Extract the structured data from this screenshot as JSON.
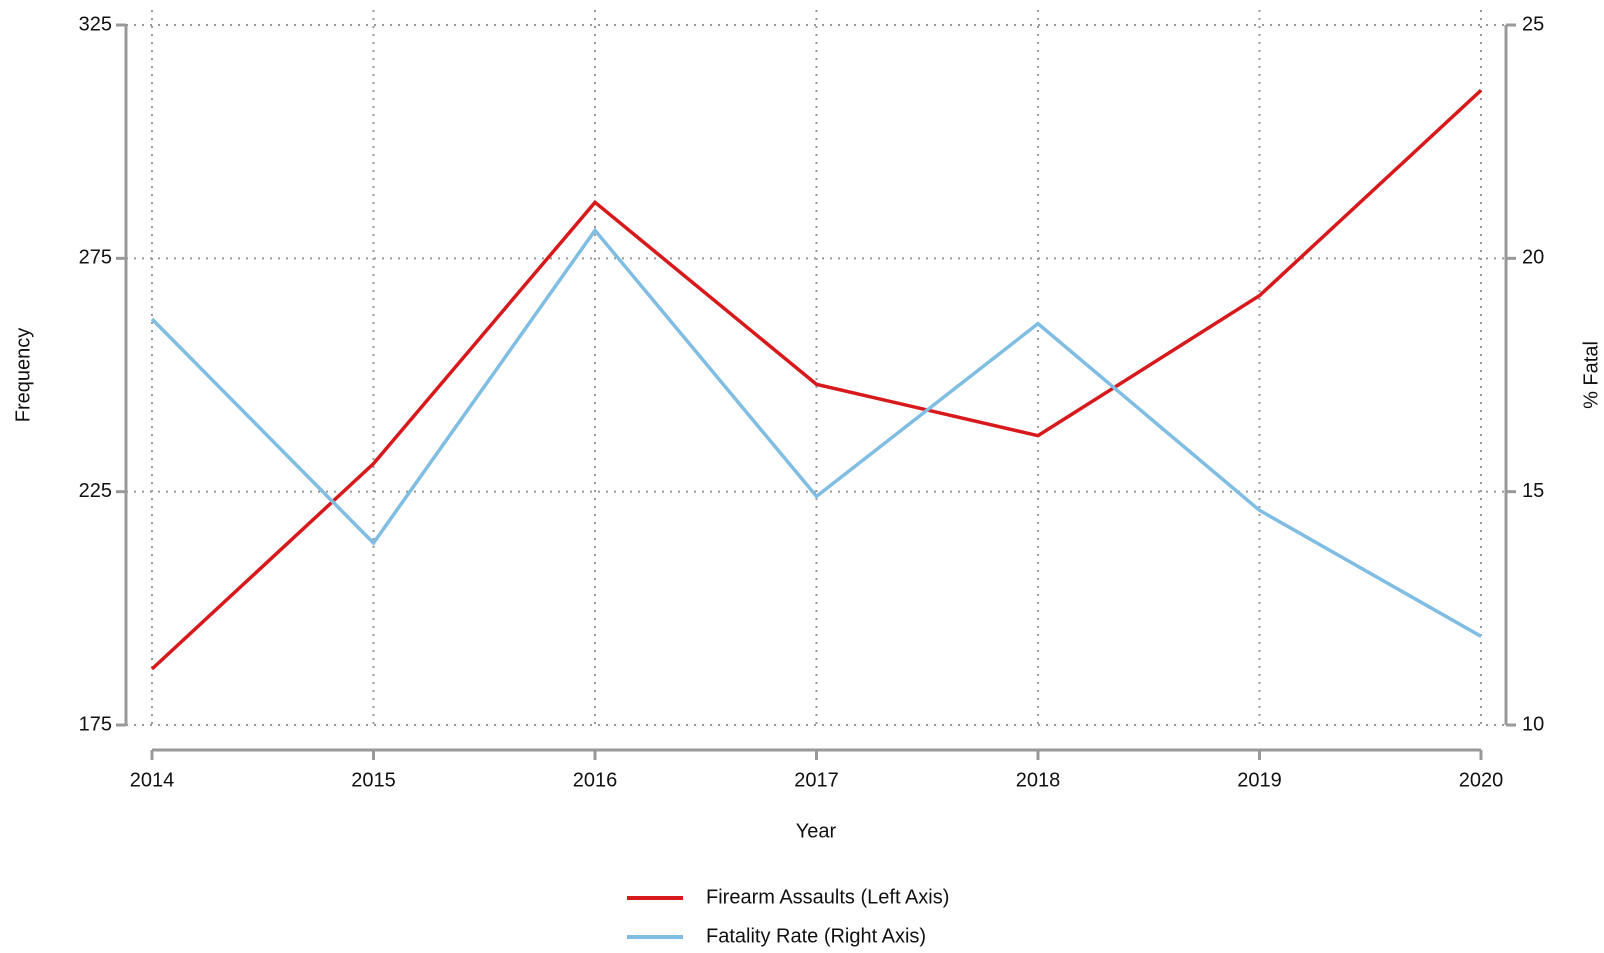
{
  "chart_data": {
    "type": "line",
    "x_label": "Year",
    "y_label": "Frequency",
    "y2_label": "% Fatal",
    "categories": [
      "2014",
      "2015",
      "2016",
      "2017",
      "2018",
      "2019",
      "2020"
    ],
    "series": [
      {
        "name": "Firearm Assaults (Left Axis)",
        "color": "#d7191c",
        "values": [
          187,
          231,
          287,
          248,
          237,
          267,
          311
        ]
      },
      {
        "name": "Fatality Rate (Right Axis)",
        "color": "#7fbde3",
        "axis": "y2",
        "values": [
          18.7,
          13.9,
          20.6,
          14.9,
          18.6,
          14.6,
          11.9
        ]
      }
    ],
    "ylim": [
      175,
      325
    ],
    "yticks": [
      175,
      225,
      275,
      325
    ],
    "y2lim": [
      10,
      25
    ],
    "y2ticks": [
      10,
      15,
      20,
      25
    ],
    "grid": true
  }
}
